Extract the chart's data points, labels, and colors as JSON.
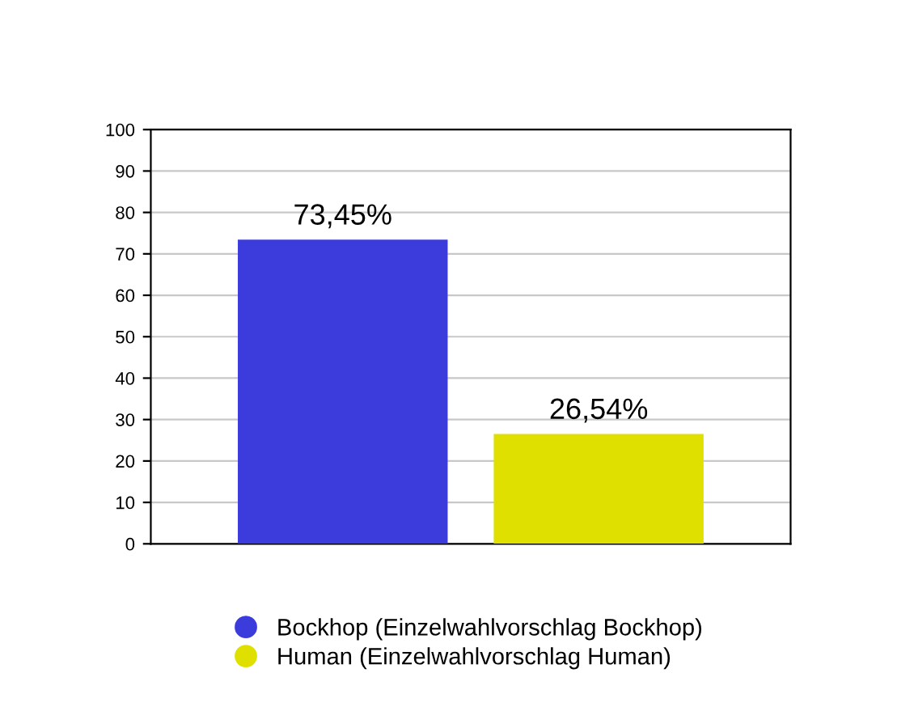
{
  "chart_data": {
    "type": "bar",
    "categories": [
      null
    ],
    "series": [
      {
        "name": "Bockhop (Einzelwahlvorschlag Bockhop)",
        "color": "#3c3cdc",
        "values": [
          73.45
        ],
        "value_labels": [
          "73,45%"
        ]
      },
      {
        "name": "Human (Einzelwahlvorschlag Human)",
        "color": "#e0e000",
        "values": [
          26.54
        ],
        "value_labels": [
          "26,54%"
        ]
      }
    ],
    "ylim": [
      0,
      100
    ],
    "yticks": [
      0,
      10,
      20,
      30,
      40,
      50,
      60,
      70,
      80,
      90,
      100
    ],
    "grid": "y",
    "legend": "bottom"
  }
}
